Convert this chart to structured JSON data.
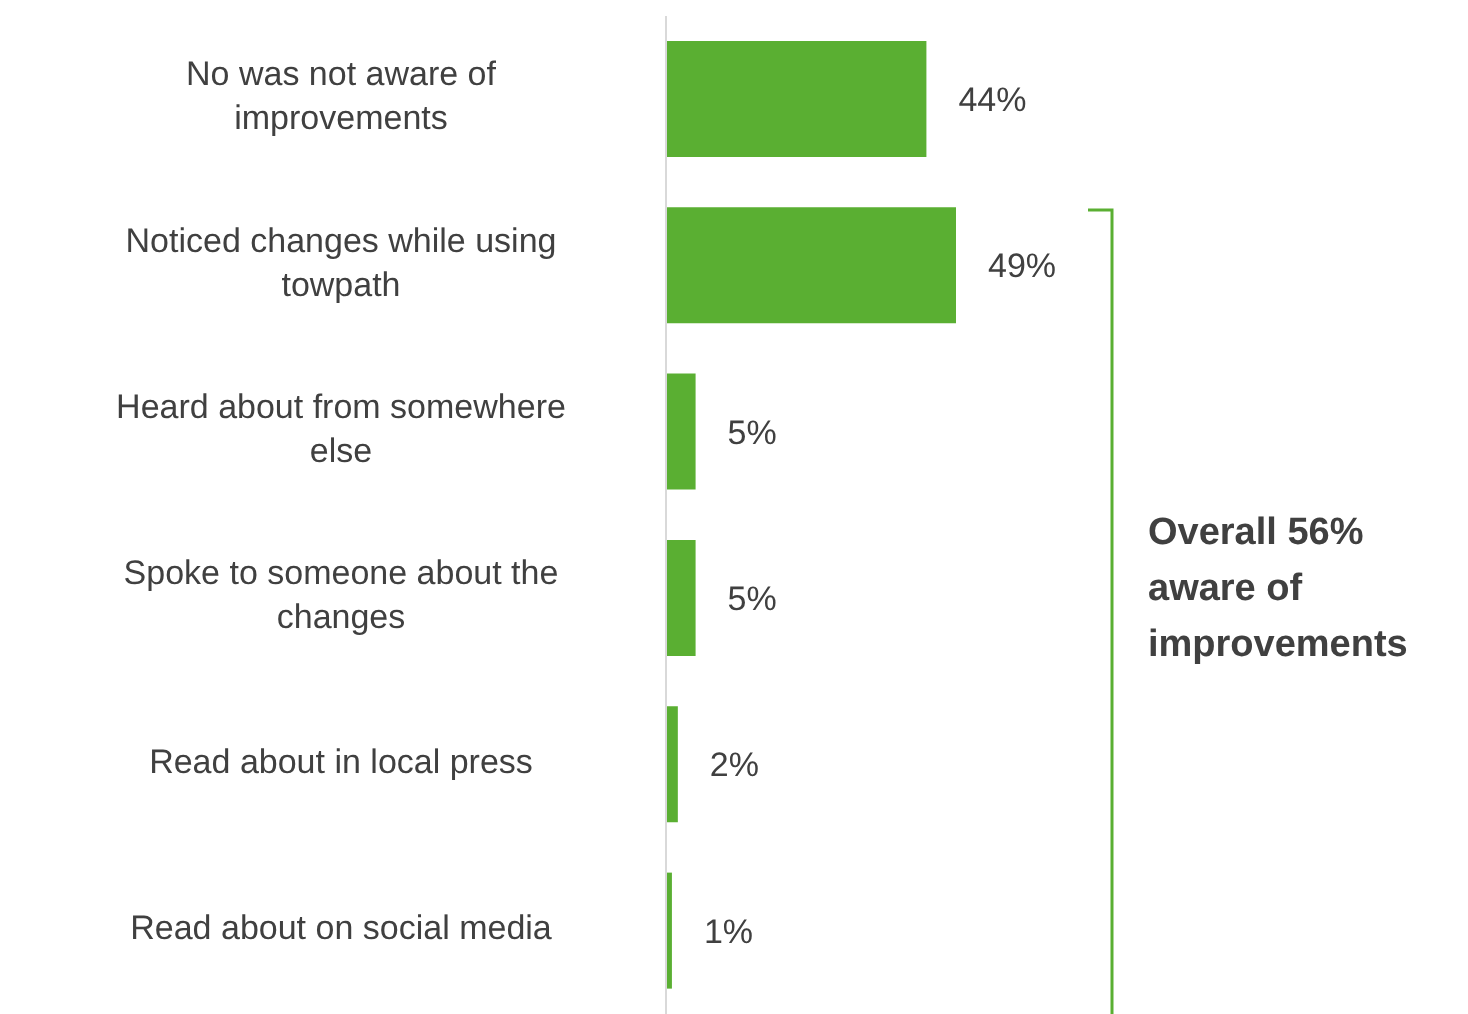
{
  "chart_data": {
    "type": "bar",
    "orientation": "horizontal",
    "categories": [
      "No was not aware of improvements",
      "Noticed changes while using towpath",
      "Heard about from somewhere else",
      "Spoke to someone about the changes",
      "Read about in local press",
      "Read about on social media"
    ],
    "values": [
      44,
      49,
      5,
      5,
      2,
      1
    ],
    "value_labels": [
      "44%",
      "49%",
      "5%",
      "5%",
      "2%",
      "1%"
    ],
    "color": "#5aaf32",
    "annotations": [
      "Overall 56% aware of improvements"
    ]
  }
}
